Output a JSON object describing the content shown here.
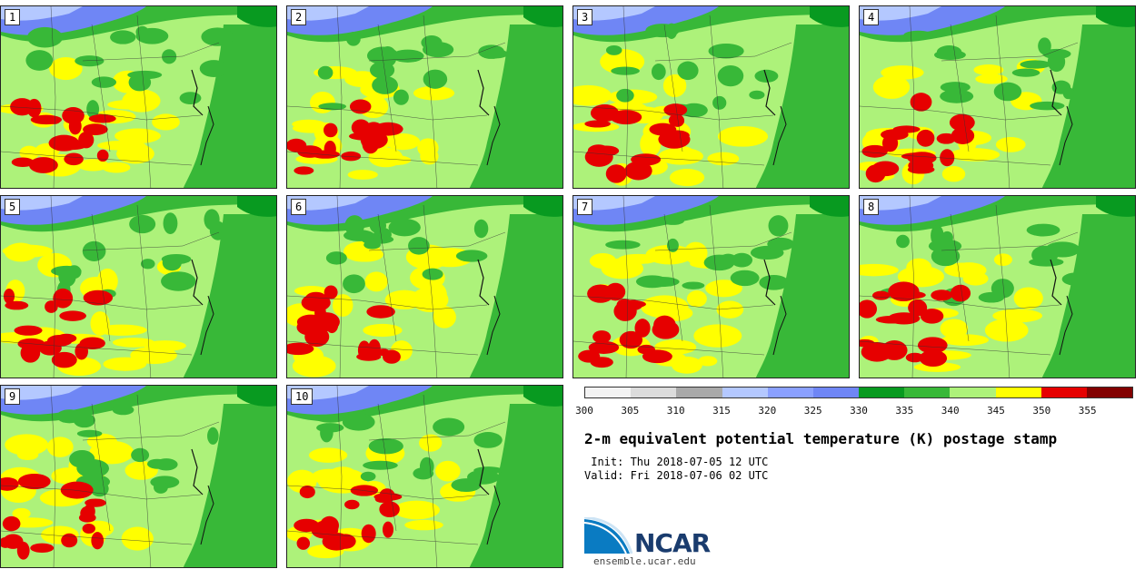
{
  "panels": [
    {
      "label": "1"
    },
    {
      "label": "2"
    },
    {
      "label": "3"
    },
    {
      "label": "4"
    },
    {
      "label": "5"
    },
    {
      "label": "6"
    },
    {
      "label": "7"
    },
    {
      "label": "8"
    },
    {
      "label": "9"
    },
    {
      "label": "10"
    }
  ],
  "colorbar": {
    "colors": [
      "#f3f3f3",
      "#dcdcdc",
      "#a9a9a9",
      "#b4c8ff",
      "#8aa0ff",
      "#6f86f5",
      "#089a20",
      "#38b838",
      "#adf27a",
      "#ffff00",
      "#e60000",
      "#820000"
    ],
    "ticks": [
      "300",
      "305",
      "310",
      "315",
      "320",
      "325",
      "330",
      "335",
      "340",
      "345",
      "350",
      "355"
    ]
  },
  "title": "2-m equivalent potential temperature (K) postage stamp",
  "init": " Init: Thu 2018-07-05 12 UTC",
  "valid": "Valid: Fri 2018-07-06 02 UTC",
  "logo": {
    "text": "NCAR"
  },
  "site": "ensemble.ucar.edu"
}
